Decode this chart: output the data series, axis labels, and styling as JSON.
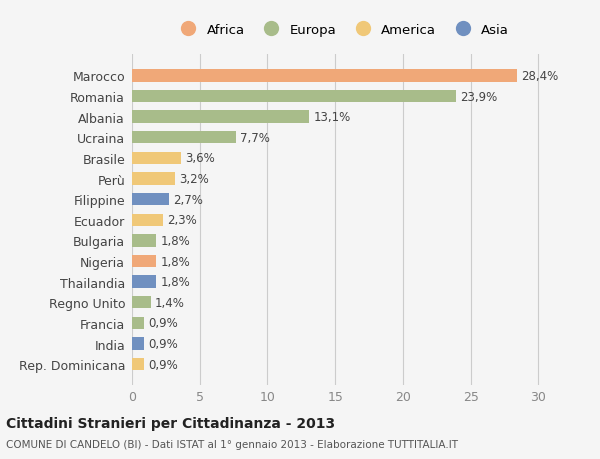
{
  "categories": [
    "Marocco",
    "Romania",
    "Albania",
    "Ucraina",
    "Brasile",
    "Perù",
    "Filippine",
    "Ecuador",
    "Bulgaria",
    "Nigeria",
    "Thailandia",
    "Regno Unito",
    "Francia",
    "India",
    "Rep. Dominicana"
  ],
  "values": [
    28.4,
    23.9,
    13.1,
    7.7,
    3.6,
    3.2,
    2.7,
    2.3,
    1.8,
    1.8,
    1.8,
    1.4,
    0.9,
    0.9,
    0.9
  ],
  "labels": [
    "28,4%",
    "23,9%",
    "13,1%",
    "7,7%",
    "3,6%",
    "3,2%",
    "2,7%",
    "2,3%",
    "1,8%",
    "1,8%",
    "1,8%",
    "1,4%",
    "0,9%",
    "0,9%",
    "0,9%"
  ],
  "continents": [
    "Africa",
    "Europa",
    "Europa",
    "Europa",
    "America",
    "America",
    "Asia",
    "America",
    "Europa",
    "Africa",
    "Asia",
    "Europa",
    "Europa",
    "Asia",
    "America"
  ],
  "continent_colors": {
    "Africa": "#F0A878",
    "Europa": "#A8BC8A",
    "America": "#F0C878",
    "Asia": "#7090C0"
  },
  "legend_order": [
    "Africa",
    "Europa",
    "America",
    "Asia"
  ],
  "bg_color": "#F5F5F5",
  "title": "Cittadini Stranieri per Cittadinanza - 2013",
  "subtitle": "COMUNE DI CANDELO (BI) - Dati ISTAT al 1° gennaio 2013 - Elaborazione TUTTITALIA.IT",
  "xlim": [
    0,
    31
  ],
  "xticks": [
    0,
    5,
    10,
    15,
    20,
    25,
    30
  ]
}
